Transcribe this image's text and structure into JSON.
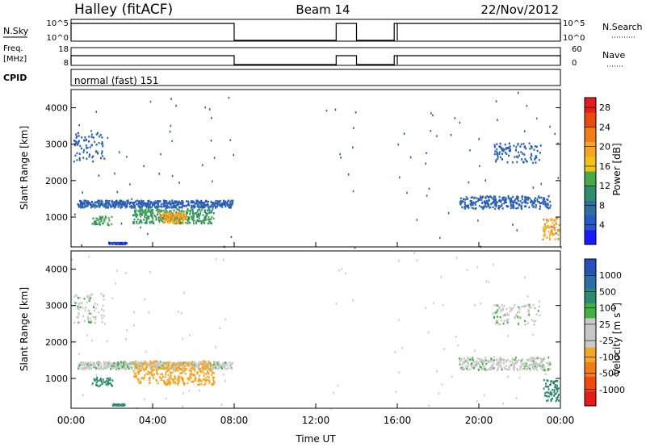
{
  "header": {
    "title": "Halley (fitACF)",
    "beam": "Beam 14",
    "date": "22/Nov/2012"
  },
  "control_panels": {
    "nsky_label": "N.Sky",
    "nsearch_label": "N.Search",
    "nsky_ticks": [
      "10^5",
      "10^0"
    ],
    "nsearch_ticks": [
      "10^5",
      "10^0"
    ],
    "freq_label_1": "Freq.",
    "freq_label_2": "[MHz]",
    "freq_ticks": [
      "18",
      "8"
    ],
    "nave_label": "Nave",
    "nave_ticks": [
      "60",
      "0"
    ],
    "cpid_label": "CPID",
    "cpid_value": "normal (fast) 151"
  },
  "operating_intervals_hours": [
    [
      0,
      8
    ],
    [
      13,
      14
    ],
    [
      15.85,
      16
    ],
    [
      16,
      24
    ]
  ],
  "colors": {
    "power_scale": [
      "#1a1aff",
      "#2855c8",
      "#2e6fa0",
      "#2f8c6c",
      "#4aa84a",
      "#f2c21a",
      "#f5a623",
      "#f07d18",
      "#e84b10",
      "#e41c1c"
    ],
    "velocity_scale": [
      "#2850b8",
      "#2e6ea8",
      "#2f8a72",
      "#43b043",
      "#c8c8c8",
      "#c8c8c8",
      "#f5a623",
      "#f07d18",
      "#f04a10",
      "#e41c1c"
    ],
    "power_background": "#1e3fd0",
    "velocity_background": "#c8c8c8"
  },
  "chart_data": [
    {
      "type": "heatmap",
      "title": "",
      "xlabel": "Time UT",
      "ylabel": "Slant Range [km]",
      "xlim": [
        0,
        24
      ],
      "ylim": [
        180,
        4500
      ],
      "x_ticks": [
        "00:00",
        "04:00",
        "08:00",
        "12:00",
        "16:00",
        "20:00",
        "00:00"
      ],
      "y_ticks": [
        1000,
        2000,
        3000,
        4000
      ],
      "colorbar": {
        "label": "Power [dB]",
        "ticks": [
          4,
          8,
          12,
          16,
          20,
          24,
          28
        ],
        "range": [
          0,
          30
        ]
      },
      "echo_regions": [
        {
          "t": [
            0.3,
            7.9
          ],
          "r": [
            1280,
            1480
          ],
          "value": 6,
          "density": 0.55
        },
        {
          "t": [
            0.1,
            1.6
          ],
          "r": [
            2550,
            3350
          ],
          "value": 6,
          "density": 0.35
        },
        {
          "t": [
            3.0,
            7.0
          ],
          "r": [
            850,
            1250
          ],
          "value": 12,
          "density": 0.6
        },
        {
          "t": [
            4.3,
            5.6
          ],
          "r": [
            850,
            1150
          ],
          "value": 20,
          "density": 0.6
        },
        {
          "t": [
            1.0,
            2.0
          ],
          "r": [
            800,
            1050
          ],
          "value": 12,
          "density": 0.3
        },
        {
          "t": [
            19.0,
            23.5
          ],
          "r": [
            1250,
            1600
          ],
          "value": 6,
          "density": 0.45
        },
        {
          "t": [
            20.7,
            23.0
          ],
          "r": [
            2500,
            3050
          ],
          "value": 6,
          "density": 0.3
        },
        {
          "t": [
            23.1,
            23.9
          ],
          "r": [
            400,
            1000
          ],
          "value": 20,
          "density": 0.6
        },
        {
          "t": [
            1.8,
            2.7
          ],
          "r": [
            280,
            320
          ],
          "value": 4,
          "density": 0.8
        }
      ]
    },
    {
      "type": "heatmap",
      "title": "",
      "xlabel": "Time UT",
      "ylabel": "Slant Range [km]",
      "xlim": [
        0,
        24
      ],
      "ylim": [
        180,
        4500
      ],
      "x_ticks": [
        "00:00",
        "04:00",
        "08:00",
        "12:00",
        "16:00",
        "20:00",
        "00:00"
      ],
      "y_ticks": [
        1000,
        2000,
        3000,
        4000
      ],
      "colorbar": {
        "label": "Velocity [m s^-1]",
        "ticks": [
          1000,
          500,
          100,
          25,
          -25,
          -100,
          -500,
          -1000
        ]
      },
      "echo_regions": [
        {
          "t": [
            0.3,
            7.9
          ],
          "r": [
            1280,
            1480
          ],
          "value": 0,
          "density": 0.55
        },
        {
          "t": [
            0.1,
            1.6
          ],
          "r": [
            2550,
            3350
          ],
          "value": 0,
          "density": 0.35
        },
        {
          "t": [
            3.0,
            7.0
          ],
          "r": [
            850,
            1500
          ],
          "value": -200,
          "density": 0.6
        },
        {
          "t": [
            1.0,
            2.0
          ],
          "r": [
            800,
            1050
          ],
          "value": 150,
          "density": 0.3
        },
        {
          "t": [
            19.0,
            23.5
          ],
          "r": [
            1250,
            1600
          ],
          "value": 0,
          "density": 0.45
        },
        {
          "t": [
            20.7,
            23.0
          ],
          "r": [
            2500,
            3050
          ],
          "value": 0,
          "density": 0.3
        },
        {
          "t": [
            23.1,
            23.9
          ],
          "r": [
            400,
            1000
          ],
          "value": 150,
          "density": 0.6
        },
        {
          "t": [
            2.0,
            2.6
          ],
          "r": [
            280,
            320
          ],
          "value": 150,
          "density": 0.8
        }
      ]
    }
  ]
}
